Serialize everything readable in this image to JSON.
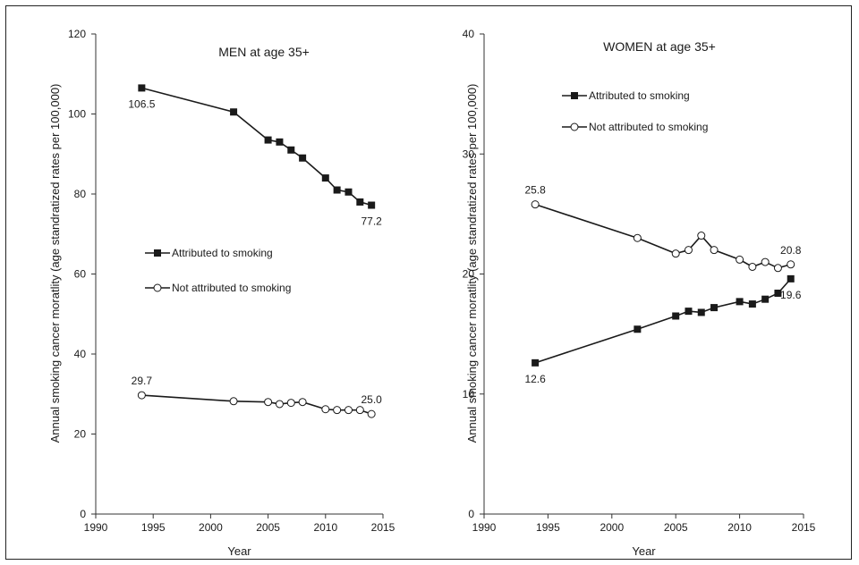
{
  "chart_data": [
    {
      "type": "line",
      "title": "MEN at age 35+",
      "xlabel": "Year",
      "ylabel": "Annual smoking cancer moratlity (age standratized rates per 100,000)",
      "xlim": [
        1990,
        2015
      ],
      "ylim": [
        0,
        120
      ],
      "xticks": [
        1990,
        1995,
        2000,
        2005,
        2010,
        2015
      ],
      "yticks": [
        0,
        20,
        40,
        60,
        80,
        100,
        120
      ],
      "grid": false,
      "legend_position": "center-left",
      "series": [
        {
          "name": "Attributed to smoking",
          "marker": "filled-square",
          "x": [
            1994,
            2002,
            2005,
            2006,
            2007,
            2008,
            2010,
            2011,
            2012,
            2013,
            2014
          ],
          "y": [
            106.5,
            100.5,
            93.5,
            93.0,
            91.0,
            89.0,
            84.0,
            81.0,
            80.5,
            78.0,
            77.2
          ]
        },
        {
          "name": "Not attributed to smoking",
          "marker": "open-circle",
          "x": [
            1994,
            2002,
            2005,
            2006,
            2007,
            2008,
            2010,
            2011,
            2012,
            2013,
            2014
          ],
          "y": [
            29.7,
            28.2,
            28.0,
            27.5,
            27.8,
            28.0,
            26.2,
            26.0,
            26.0,
            26.0,
            25.0
          ]
        }
      ],
      "annotations": [
        {
          "text": "106.5",
          "x": 1994,
          "y": 106.5,
          "pos": "below"
        },
        {
          "text": "77.2",
          "x": 2014,
          "y": 77.2,
          "pos": "below"
        },
        {
          "text": "29.7",
          "x": 1994,
          "y": 29.7,
          "pos": "above"
        },
        {
          "text": "25.0",
          "x": 2014,
          "y": 25.0,
          "pos": "above"
        }
      ]
    },
    {
      "type": "line",
      "title": "WOMEN at age 35+",
      "xlabel": "Year",
      "ylabel": "Annual smoking cancer moratlity (age standratized rates per 100,000)",
      "xlim": [
        1990,
        2015
      ],
      "ylim": [
        0,
        40
      ],
      "xticks": [
        1990,
        1995,
        2000,
        2005,
        2010,
        2015
      ],
      "yticks": [
        0,
        10,
        20,
        30,
        40
      ],
      "grid": false,
      "legend_position": "top-left",
      "series": [
        {
          "name": "Attributed to smoking",
          "marker": "filled-square",
          "x": [
            1994,
            2002,
            2005,
            2006,
            2007,
            2008,
            2010,
            2011,
            2012,
            2013,
            2014
          ],
          "y": [
            12.6,
            15.4,
            16.5,
            16.9,
            16.8,
            17.2,
            17.7,
            17.5,
            17.9,
            18.4,
            19.6
          ]
        },
        {
          "name": "Not attributed to smoking",
          "marker": "open-circle",
          "x": [
            1994,
            2002,
            2005,
            2006,
            2007,
            2008,
            2010,
            2011,
            2012,
            2013,
            2014
          ],
          "y": [
            25.8,
            23.0,
            21.7,
            22.0,
            23.2,
            22.0,
            21.2,
            20.6,
            21.0,
            20.5,
            20.8
          ]
        }
      ],
      "annotations": [
        {
          "text": "25.8",
          "x": 1994,
          "y": 25.8,
          "pos": "above"
        },
        {
          "text": "20.8",
          "x": 2014,
          "y": 20.8,
          "pos": "above"
        },
        {
          "text": "12.6",
          "x": 1994,
          "y": 12.6,
          "pos": "below"
        },
        {
          "text": "19.6",
          "x": 2014,
          "y": 19.6,
          "pos": "below"
        }
      ]
    }
  ]
}
